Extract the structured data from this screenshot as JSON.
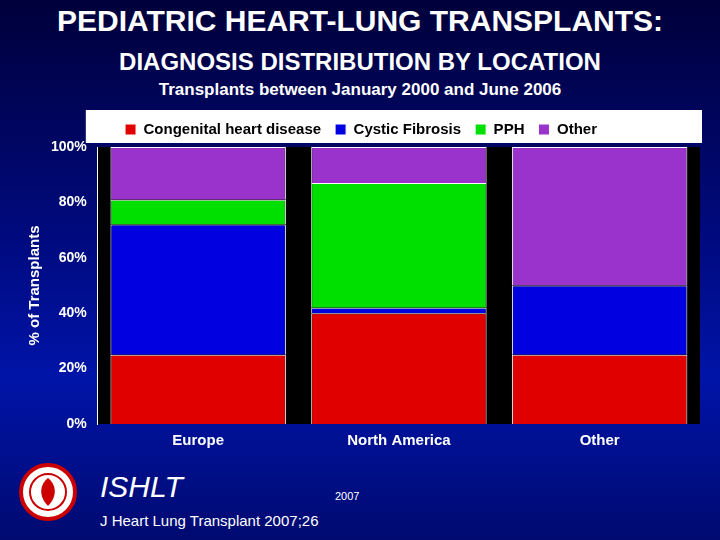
{
  "chart_data": {
    "type": "bar",
    "title": "PEDIATRIC HEART-LUNG TRANSPLANTS:",
    "subtitle": [
      "DIAGNOSIS DISTRIBUTION BY LOCATION",
      "Transplants between January 2000 and June 2006"
    ],
    "y_label": "% of Transplants",
    "categories": [
      "Europe",
      "North America",
      "Other"
    ],
    "series": [
      {
        "name": "Congenital heart disease",
        "color": "#e00000",
        "values": [
          25,
          40,
          25
        ]
      },
      {
        "name": "Cystic Fibrosis",
        "color": "#0000e0",
        "values": [
          47,
          2,
          25
        ]
      },
      {
        "name": "PPH",
        "color": "#00e000",
        "values": [
          9,
          45,
          0
        ]
      },
      {
        "name": "Other",
        "color": "#9933cc",
        "values": [
          19,
          13,
          50
        ]
      }
    ],
    "stacked": true,
    "ylim": [
      0,
      100
    ],
    "yticks": [
      {
        "value": 0,
        "label": "0%"
      },
      {
        "value": 20,
        "label": "20%"
      },
      {
        "value": 40,
        "label": "40%"
      },
      {
        "value": 60,
        "label": "60%"
      },
      {
        "value": 80,
        "label": "80%"
      },
      {
        "value": 100,
        "label": "100%"
      }
    ],
    "grid": false,
    "legend": "top",
    "annotations": [
      "ISHLT",
      "2007",
      "J Heart Lung Transplant 2007;26"
    ]
  }
}
